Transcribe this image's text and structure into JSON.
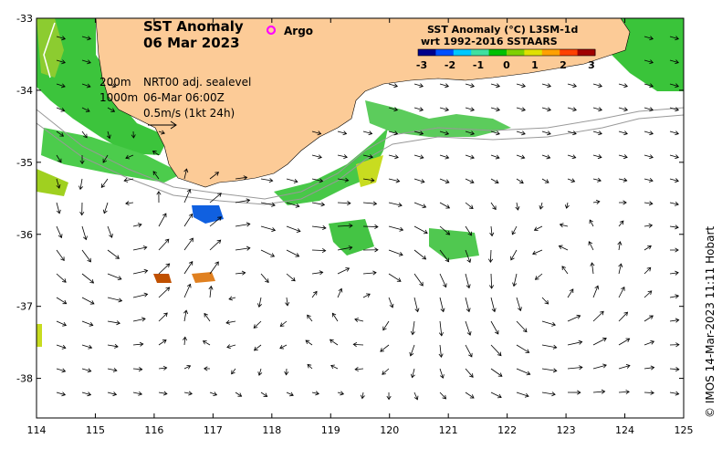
{
  "map": {
    "title_line1": "SST Anomaly",
    "title_line2": "06 Mar 2023",
    "argo_label": "Argo",
    "argo_color": "#ff00ff",
    "colorbar_title_line1": "SST Anomaly (°C) L3SM-1d",
    "colorbar_title_line2": "wrt 1992-2016 SSTAARS",
    "colorbar_ticks": [
      "-3",
      "-2",
      "-1",
      "0",
      "1",
      "2",
      "3"
    ],
    "colorbar_colors": [
      "#00008b",
      "#0050ff",
      "#00c8ff",
      "#40e0a0",
      "#00c000",
      "#80d000",
      "#e0e000",
      "#ffa000",
      "#ff4000",
      "#a00000"
    ],
    "contour_labels": [
      "200m",
      "1000m"
    ],
    "info_lines": [
      "NRT00 adj. sealevel",
      "06-Mar 06:00Z",
      "0.5m/s (1kt 24h)"
    ],
    "credit": "© IMOS 14-Mar-2023 11:11 Hobart",
    "x_ticks": [
      "114",
      "115",
      "116",
      "117",
      "118",
      "119",
      "120",
      "121",
      "122",
      "123",
      "124",
      "125"
    ],
    "y_ticks": [
      "-33",
      "-34",
      "-35",
      "-36",
      "-37",
      "-38"
    ],
    "land_color": "#fccb97",
    "lon_range": [
      114,
      125
    ],
    "lat_range": [
      -38.55,
      -33
    ]
  }
}
